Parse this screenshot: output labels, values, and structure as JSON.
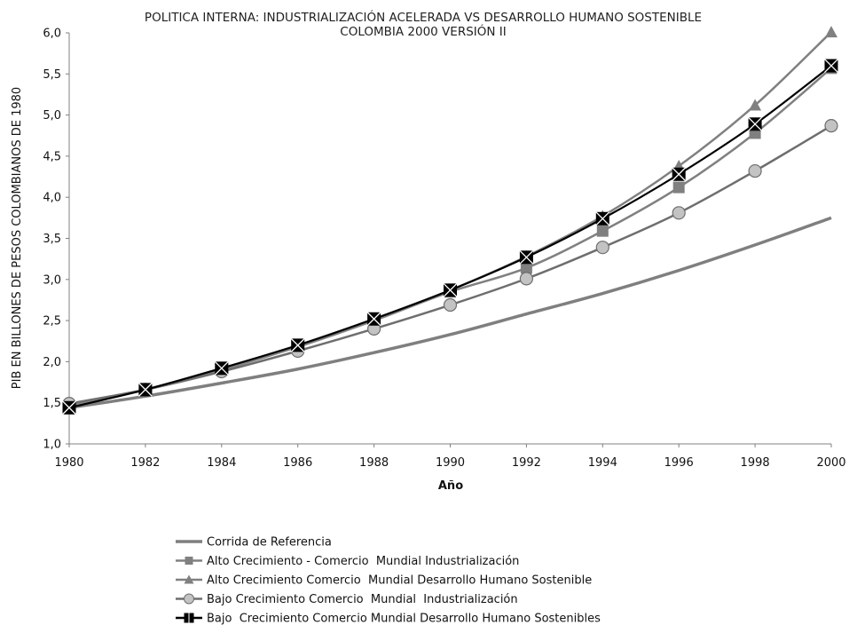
{
  "chart_data": {
    "type": "line",
    "title": "POLITICA INTERNA: INDUSTRIALIZACIÓN ACELERADA VS DESARROLLO HUMANO SOSTENIBLE",
    "subtitle": "COLOMBIA 2000 VERSIÓN II",
    "xlabel": "Año",
    "ylabel": "PIB EN BILLONES DE PESOS COLOMBIANOS DE 1980",
    "x": [
      1980,
      1982,
      1984,
      1986,
      1988,
      1990,
      1992,
      1994,
      1996,
      1998,
      2000
    ],
    "x_tick_labels": [
      "1980",
      "1982",
      "1984",
      "1986",
      "1988",
      "1990",
      "1992",
      "1994",
      "1996",
      "1998",
      "2000"
    ],
    "y_ticks": [
      1.0,
      1.5,
      2.0,
      2.5,
      3.0,
      3.5,
      4.0,
      4.5,
      5.0,
      5.5,
      6.0
    ],
    "y_tick_labels": [
      "1,0",
      "1,5",
      "2,0",
      "2,5",
      "3,0",
      "3,5",
      "4,0",
      "4,5",
      "5,0",
      "5,5",
      "6,0"
    ],
    "xlim": [
      1980,
      2000
    ],
    "ylim": [
      1.0,
      6.0
    ],
    "grid": false,
    "legend_position": "bottom",
    "series": [
      {
        "name": "Corrida de Referencia",
        "marker": "none",
        "color": "#7f7f7f",
        "values": [
          1.44,
          1.58,
          1.74,
          1.91,
          2.11,
          2.33,
          2.58,
          2.83,
          3.11,
          3.42,
          3.75
        ]
      },
      {
        "name": "Alto Crecimiento - Comercio  Mundial Industrialización",
        "marker": "square",
        "color": "#808080",
        "values": [
          1.46,
          1.66,
          1.9,
          2.18,
          2.5,
          2.85,
          3.14,
          3.59,
          4.12,
          4.78,
          5.57
        ]
      },
      {
        "name": "Alto Crecimiento Comercio  Mundial Desarrollo Humano Sostenible",
        "marker": "triangle",
        "color": "#808080",
        "values": [
          1.46,
          1.66,
          1.92,
          2.2,
          2.52,
          2.87,
          3.28,
          3.77,
          4.38,
          5.12,
          6.01
        ]
      },
      {
        "name": "Bajo Crecimiento Comercio  Mundial  Industrialización",
        "marker": "circle",
        "color": "#6e6e6e",
        "values": [
          1.49,
          1.66,
          1.88,
          2.13,
          2.4,
          2.69,
          3.01,
          3.39,
          3.81,
          4.32,
          4.87
        ]
      },
      {
        "name": "Bajo  Crecimiento Comercio Mundial Desarrollo Humano Sostenibles",
        "marker": "square-x",
        "color": "#000000",
        "values": [
          1.44,
          1.66,
          1.92,
          2.2,
          2.52,
          2.87,
          3.27,
          3.74,
          4.28,
          4.89,
          5.6
        ]
      }
    ]
  }
}
